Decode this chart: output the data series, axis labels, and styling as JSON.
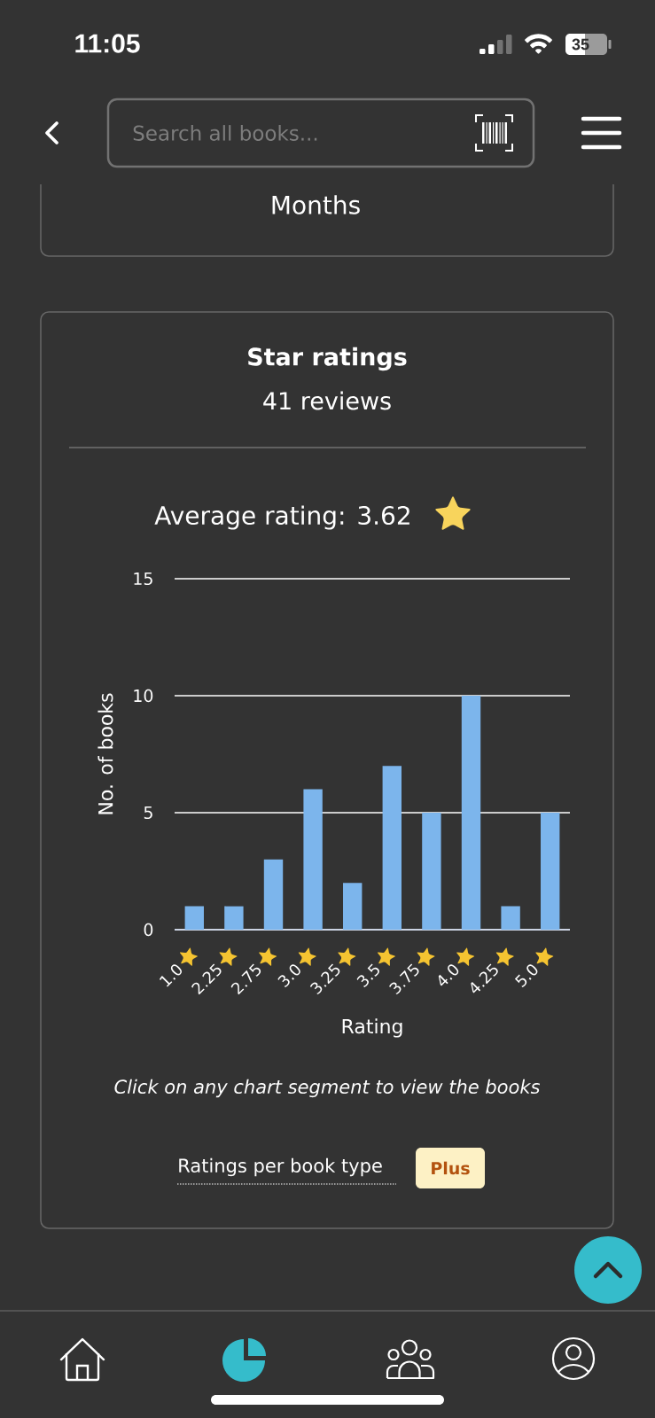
{
  "chart_data": {
    "type": "bar",
    "title": "Star ratings",
    "subtitle": "41 reviews",
    "xlabel": "Rating",
    "ylabel": "No. of books",
    "categories": [
      "1.0",
      "2.25",
      "2.75",
      "3.0",
      "3.25",
      "3.5",
      "3.75",
      "4.0",
      "4.25",
      "5.0"
    ],
    "values": [
      1,
      1,
      3,
      6,
      2,
      7,
      5,
      10,
      1,
      5
    ],
    "color": "#7cb5ec",
    "ylim": [
      0,
      15
    ],
    "yticks": [
      0,
      5,
      10,
      15
    ],
    "grid": "y",
    "annotations": [
      "Average rating: 3.62",
      "Click on any chart segment to view the books",
      "Ratings per book type",
      "Plus",
      "Months",
      "Search all books...",
      "11:05",
      "35"
    ]
  }
}
